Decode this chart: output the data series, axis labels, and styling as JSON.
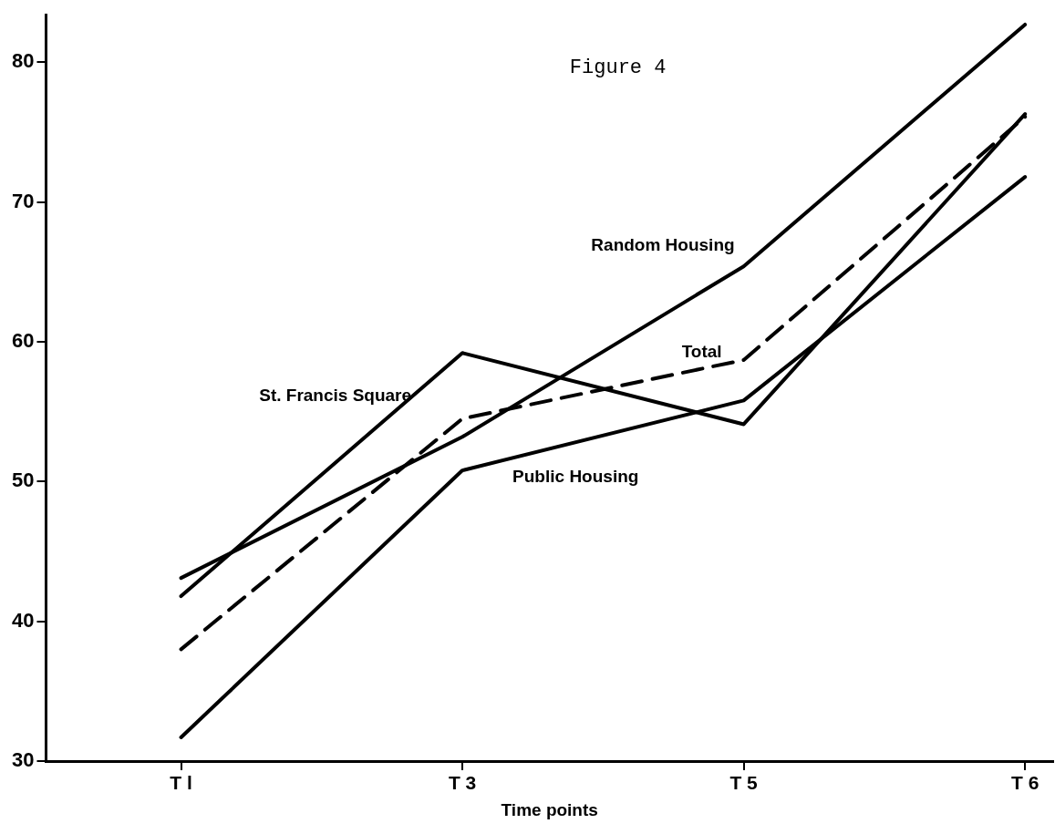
{
  "chart_data": {
    "type": "line",
    "title": "Figure 4",
    "xlabel": "Time points",
    "categories": [
      "T l",
      "T 3",
      "T 5",
      "T 6"
    ],
    "series": [
      {
        "name": "Random Housing",
        "color": "#000000",
        "values": [
          43.1,
          53.2,
          65.4,
          82.7
        ]
      },
      {
        "name": "St. Francis Square",
        "color": "#000000",
        "values": [
          41.8,
          59.2,
          54.1,
          76.3
        ]
      },
      {
        "name": "Public Housing",
        "color": "#000000",
        "values": [
          31.7,
          50.8,
          55.8,
          71.8
        ]
      },
      {
        "name": "Total",
        "color": "#000000",
        "values": [
          38.0,
          54.5,
          58.7,
          76.1
        ],
        "line_style": "dashed"
      }
    ],
    "ylim": [
      30,
      83.4
    ],
    "yticks": [
      30,
      40,
      50,
      60,
      70,
      80
    ],
    "grid": false,
    "legend": false,
    "marker": "none",
    "line_style": "solid"
  }
}
